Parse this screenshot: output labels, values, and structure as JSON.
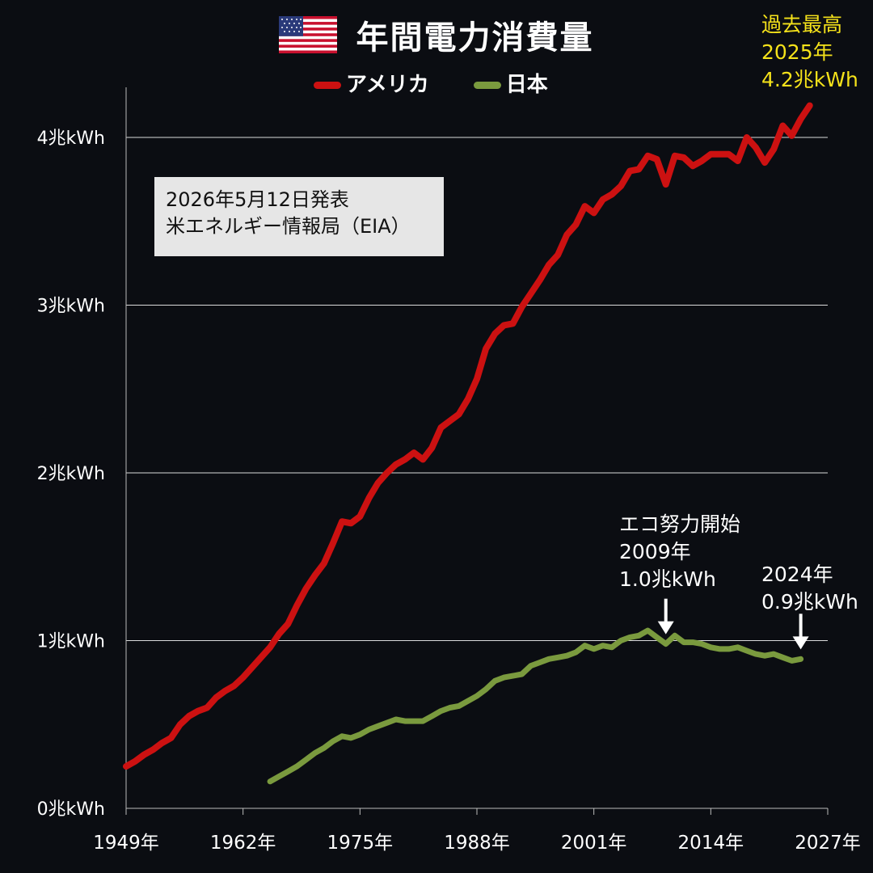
{
  "title": "年間電力消費量",
  "legend": {
    "usa": "アメリカ",
    "japan": "日本"
  },
  "source_note": {
    "line1": "2026年5月12日発表",
    "line2": "米エネルギー情報局（EIA）"
  },
  "annotations": {
    "peak": {
      "line1": "過去最高",
      "line2": "2025年",
      "line3": "4.2兆kWh"
    },
    "eco": {
      "line1": "エコ努力開始",
      "line2": "2009年",
      "line3": "1.0兆kWh"
    },
    "latest": {
      "line1": "2024年",
      "line2": "0.9兆kWh"
    }
  },
  "colors": {
    "background": "#0b0d12",
    "usa": "#cc1111",
    "japan": "#7a9a3e",
    "peak_text": "#f5e21a",
    "grid": "#ffffff",
    "note_box": "#e6e6e6"
  },
  "icons": {
    "flag": "us-flag-icon",
    "arrow": "down-arrow-icon"
  },
  "chart_data": {
    "type": "line",
    "title": "年間電力消費量",
    "xlim": [
      1949,
      2027
    ],
    "ylim": [
      0,
      4.2
    ],
    "x_ticks": [
      1949,
      1962,
      1975,
      1988,
      2001,
      2014,
      2027
    ],
    "x_tick_labels": [
      "1949年",
      "1962年",
      "1975年",
      "1988年",
      "2001年",
      "2014年",
      "2027年"
    ],
    "y_ticks": [
      0,
      1,
      2,
      3,
      4
    ],
    "y_tick_labels": [
      "0兆kWh",
      "1兆kWh",
      "2兆kWh",
      "3兆kWh",
      "4兆kWh"
    ],
    "grid": true,
    "legend_position": "top-center",
    "series": [
      {
        "name": "アメリカ",
        "color": "#cc1111",
        "x": [
          1949,
          1950,
          1951,
          1952,
          1953,
          1954,
          1955,
          1956,
          1957,
          1958,
          1959,
          1960,
          1961,
          1962,
          1963,
          1964,
          1965,
          1966,
          1967,
          1968,
          1969,
          1970,
          1971,
          1972,
          1973,
          1974,
          1975,
          1976,
          1977,
          1978,
          1979,
          1980,
          1981,
          1982,
          1983,
          1984,
          1985,
          1986,
          1987,
          1988,
          1989,
          1990,
          1991,
          1992,
          1993,
          1994,
          1995,
          1996,
          1997,
          1998,
          1999,
          2000,
          2001,
          2002,
          2003,
          2004,
          2005,
          2006,
          2007,
          2008,
          2009,
          2010,
          2011,
          2012,
          2013,
          2014,
          2015,
          2016,
          2017,
          2018,
          2019,
          2020,
          2021,
          2022,
          2023,
          2024,
          2025
        ],
        "values": [
          0.25,
          0.28,
          0.32,
          0.35,
          0.39,
          0.42,
          0.5,
          0.55,
          0.58,
          0.6,
          0.66,
          0.7,
          0.73,
          0.78,
          0.84,
          0.9,
          0.96,
          1.04,
          1.1,
          1.21,
          1.31,
          1.39,
          1.46,
          1.58,
          1.71,
          1.7,
          1.74,
          1.85,
          1.94,
          2.0,
          2.05,
          2.08,
          2.12,
          2.08,
          2.15,
          2.27,
          2.31,
          2.35,
          2.44,
          2.56,
          2.74,
          2.83,
          2.88,
          2.89,
          2.99,
          3.07,
          3.15,
          3.24,
          3.3,
          3.42,
          3.48,
          3.59,
          3.55,
          3.63,
          3.66,
          3.71,
          3.8,
          3.81,
          3.89,
          3.87,
          3.72,
          3.89,
          3.88,
          3.83,
          3.86,
          3.9,
          3.9,
          3.9,
          3.86,
          4.0,
          3.94,
          3.85,
          3.93,
          4.07,
          4.01,
          4.11,
          4.19
        ]
      },
      {
        "name": "日本",
        "color": "#7a9a3e",
        "x": [
          1965,
          1966,
          1967,
          1968,
          1969,
          1970,
          1971,
          1972,
          1973,
          1974,
          1975,
          1976,
          1977,
          1978,
          1979,
          1980,
          1981,
          1982,
          1983,
          1984,
          1985,
          1986,
          1987,
          1988,
          1989,
          1990,
          1991,
          1992,
          1993,
          1994,
          1995,
          1996,
          1997,
          1998,
          1999,
          2000,
          2001,
          2002,
          2003,
          2004,
          2005,
          2006,
          2007,
          2008,
          2009,
          2010,
          2011,
          2012,
          2013,
          2014,
          2015,
          2016,
          2017,
          2018,
          2019,
          2020,
          2021,
          2022,
          2023,
          2024
        ],
        "values": [
          0.16,
          0.19,
          0.22,
          0.25,
          0.29,
          0.33,
          0.36,
          0.4,
          0.43,
          0.42,
          0.44,
          0.47,
          0.49,
          0.51,
          0.53,
          0.52,
          0.52,
          0.52,
          0.55,
          0.58,
          0.6,
          0.61,
          0.64,
          0.67,
          0.71,
          0.76,
          0.78,
          0.79,
          0.8,
          0.85,
          0.87,
          0.89,
          0.9,
          0.91,
          0.93,
          0.97,
          0.95,
          0.97,
          0.96,
          1.0,
          1.02,
          1.03,
          1.06,
          1.02,
          0.98,
          1.03,
          0.99,
          0.99,
          0.98,
          0.96,
          0.95,
          0.95,
          0.96,
          0.94,
          0.92,
          0.91,
          0.92,
          0.9,
          0.88,
          0.89
        ]
      }
    ]
  }
}
